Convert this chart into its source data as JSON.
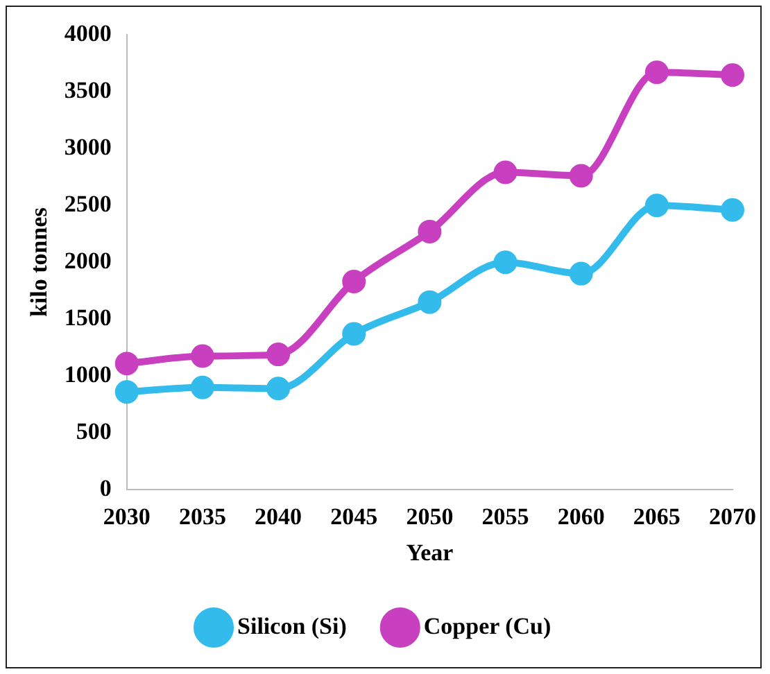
{
  "chart_data": {
    "type": "line",
    "xlabel": "Year",
    "ylabel": "kilo tonnes",
    "categories": [
      "2030",
      "2035",
      "2040",
      "2045",
      "2050",
      "2055",
      "2060",
      "2065",
      "2070"
    ],
    "series": [
      {
        "name": "Silicon (Si)",
        "color": "#33bbec",
        "values": [
          860,
          900,
          890,
          1370,
          1650,
          2000,
          1900,
          2500,
          2460
        ]
      },
      {
        "name": "Copper (Cu)",
        "color": "#c840c0",
        "values": [
          1110,
          1175,
          1190,
          1830,
          2270,
          2790,
          2760,
          3670,
          3645
        ]
      }
    ],
    "ylim": [
      0,
      4000
    ],
    "yticks": [
      0,
      500,
      1000,
      1500,
      2000,
      2500,
      3000,
      3500,
      4000
    ],
    "grid": false,
    "legend": "bottom",
    "marker": "circle",
    "line_style": "solid"
  }
}
